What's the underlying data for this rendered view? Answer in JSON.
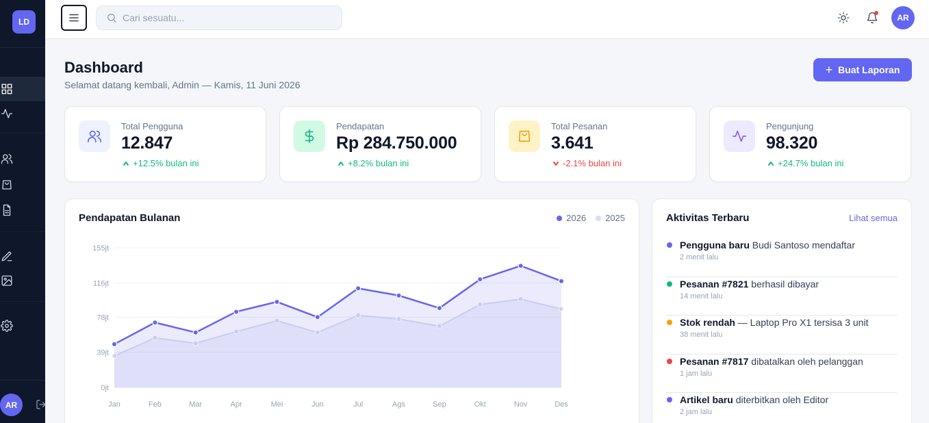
{
  "sidebar": {
    "logo": "LD",
    "user_initials": "AR",
    "items": [
      {
        "icon": "grid-icon",
        "active": true
      },
      {
        "icon": "activity-icon",
        "active": false
      },
      {
        "icon": "users-icon",
        "active": false
      },
      {
        "icon": "shopping-bag-icon",
        "active": false
      },
      {
        "icon": "file-text-icon",
        "active": false
      },
      {
        "icon": "pen-icon",
        "active": false
      },
      {
        "icon": "image-icon",
        "active": false
      },
      {
        "icon": "settings-icon",
        "active": false
      }
    ]
  },
  "topbar": {
    "search_placeholder": "Cari sesuatu...",
    "user_initials": "AR"
  },
  "header": {
    "title": "Dashboard",
    "subtitle": "Selamat datang kembali, Admin — Kamis, 11 Juni 2026",
    "action_label": "Buat Laporan",
    "action_icon": "+"
  },
  "stats": [
    {
      "label": "Total Pengguna",
      "value": "12.847",
      "change": "+12.5% bulan ini",
      "trend": "up",
      "icon": "users-icon",
      "color": "#6366f1",
      "bg": "#eef2ff"
    },
    {
      "label": "Pendapatan",
      "value": "Rp 284.750.000",
      "change": "+8.2% bulan ini",
      "trend": "up",
      "icon": "dollar-icon",
      "color": "#10b981",
      "bg": "#d1fae5"
    },
    {
      "label": "Total Pesanan",
      "value": "3.641",
      "change": "-2.1% bulan ini",
      "trend": "down",
      "icon": "shopping-bag-icon",
      "color": "#f59e0b",
      "bg": "#fef3c7"
    },
    {
      "label": "Pengunjung",
      "value": "98.320",
      "change": "+24.7% bulan ini",
      "trend": "up",
      "icon": "activity-icon",
      "color": "#8b5cf6",
      "bg": "#ede9fe"
    }
  ],
  "chart": {
    "title": "Pendapatan Bulanan"
  },
  "chart_data": {
    "type": "line",
    "title": "Pendapatan Bulanan",
    "xlabel": "",
    "ylabel": "",
    "categories": [
      "Jan",
      "Feb",
      "Mar",
      "Apr",
      "Mei",
      "Jun",
      "Jul",
      "Ags",
      "Sep",
      "Okt",
      "Nov",
      "Des"
    ],
    "ylim": [
      0,
      155
    ],
    "yticks": [
      0,
      39,
      78,
      116,
      155
    ],
    "ytick_labels": [
      "0jt",
      "39jt",
      "78jt",
      "116jt",
      "155jt"
    ],
    "series": [
      {
        "name": "2026",
        "color": "#6366f1",
        "values": [
          48,
          72,
          61,
          84,
          95,
          78,
          110,
          102,
          88,
          120,
          135,
          118
        ]
      },
      {
        "name": "2025",
        "color": "#dcdcf0",
        "values": [
          35,
          55,
          49,
          62,
          74,
          61,
          80,
          76,
          68,
          92,
          98,
          87
        ]
      }
    ],
    "grid": true,
    "legend": "top-right"
  },
  "activity": {
    "title": "Aktivitas Terbaru",
    "link_label": "Lihat semua",
    "items": [
      {
        "bold": "Pengguna baru",
        "text": " Budi Santoso mendaftar",
        "time": "2 menit lalu",
        "color": "#6366f1"
      },
      {
        "bold": "Pesanan #7821",
        "text": " berhasil dibayar",
        "time": "14 menit lalu",
        "color": "#10b981"
      },
      {
        "bold": "Stok rendah",
        "text": " — Laptop Pro X1 tersisa 3 unit",
        "time": "38 menit lalu",
        "color": "#f59e0b"
      },
      {
        "bold": "Pesanan #7817",
        "text": " dibatalkan oleh pelanggan",
        "time": "1 jam lalu",
        "color": "#ef4444"
      },
      {
        "bold": "Artikel baru",
        "text": " diterbitkan oleh Editor",
        "time": "2 jam lalu",
        "color": "#6366f1"
      }
    ]
  }
}
